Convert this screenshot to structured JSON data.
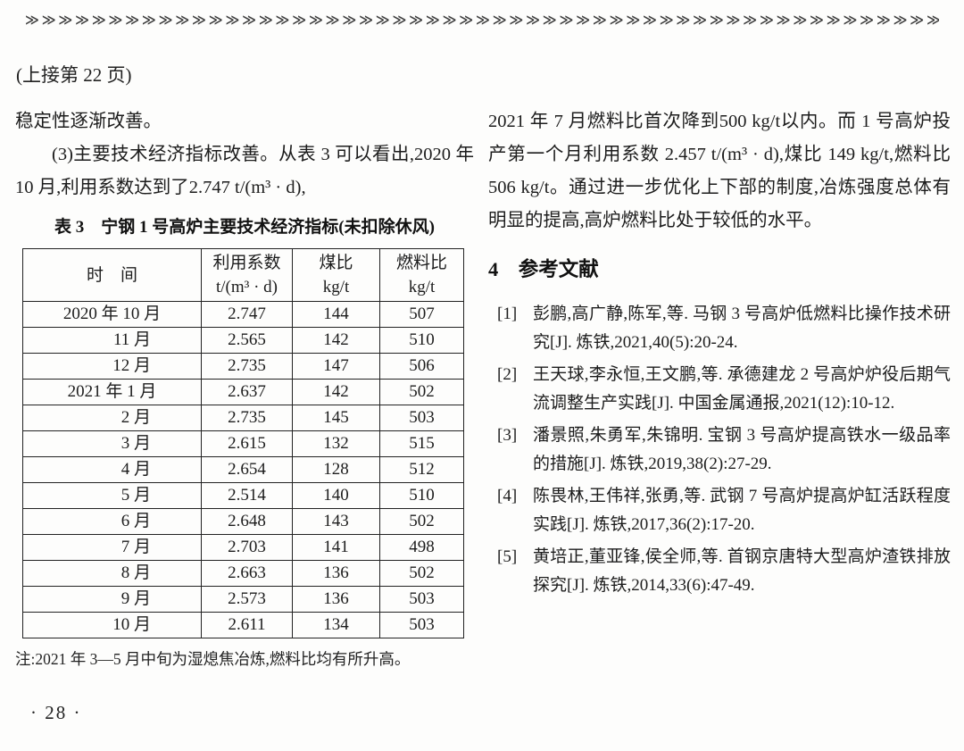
{
  "page": {
    "decorative_border": "≫≫≫≫≫≫≫≫≫≫≫≫≫≫≫≫≫≫≫≫≫≫≫≫≫≫≫≫≫≫≫≫≫≫≫≫≫≫≫≫≫≫≫≫≫≫≫≫≫≫≫≫≫≫≫≫≫≫≫≫≫≫≫≫≫≫≫≫",
    "continued_from": "(上接第 22 页)",
    "page_number": "· 28 ·"
  },
  "left_column": {
    "para1": "稳定性逐渐改善。",
    "para2": "(3)主要技术经济指标改善。从表 3 可以看出,2020 年 10 月,利用系数达到了2.747 t/(m³ · d),",
    "table": {
      "title": "表 3　宁钢 1 号高炉主要技术经济指标(未扣除休风)",
      "headers": {
        "time": "时　间",
        "col2_name": "利用系数",
        "col2_unit": "t/(m³ · d)",
        "col3_name": "煤比",
        "col3_unit": "kg/t",
        "col4_name": "燃料比",
        "col4_unit": "kg/t"
      },
      "rows": [
        [
          "2020 年 10 月",
          "2.747",
          "144",
          "507"
        ],
        [
          "11 月",
          "2.565",
          "142",
          "510"
        ],
        [
          "12 月",
          "2.735",
          "147",
          "506"
        ],
        [
          "2021 年 1 月",
          "2.637",
          "142",
          "502"
        ],
        [
          "2 月",
          "2.735",
          "145",
          "503"
        ],
        [
          "3 月",
          "2.615",
          "132",
          "515"
        ],
        [
          "4 月",
          "2.654",
          "128",
          "512"
        ],
        [
          "5 月",
          "2.514",
          "140",
          "510"
        ],
        [
          "6 月",
          "2.648",
          "143",
          "502"
        ],
        [
          "7 月",
          "2.703",
          "141",
          "498"
        ],
        [
          "8 月",
          "2.663",
          "136",
          "502"
        ],
        [
          "9 月",
          "2.573",
          "136",
          "503"
        ],
        [
          "10 月",
          "2.611",
          "134",
          "503"
        ]
      ],
      "note": "注:2021 年 3—5 月中旬为湿熄焦冶炼,燃料比均有所升高。"
    }
  },
  "right_column": {
    "paragraph": "2021 年 7 月燃料比首次降到500 kg/t以内。而 1 号高炉投产第一个月利用系数 2.457 t/(m³ · d),煤比 149 kg/t,燃料比 506 kg/t。通过进一步优化上下部的制度,冶炼强度总体有明显的提高,高炉燃料比处于较低的水平。",
    "section_heading": "4　参考文献",
    "references": [
      {
        "label": "[1]",
        "text": "彭鹏,高广静,陈军,等. 马钢 3 号高炉低燃料比操作技术研究[J]. 炼铁,2021,40(5):20-24."
      },
      {
        "label": "[2]",
        "text": "王天球,李永恒,王文鹏,等. 承德建龙 2 号高炉炉役后期气流调整生产实践[J]. 中国金属通报,2021(12):10-12."
      },
      {
        "label": "[3]",
        "text": "潘景照,朱勇军,朱锦明. 宝钢 3 号高炉提高铁水一级品率的措施[J]. 炼铁,2019,38(2):27-29."
      },
      {
        "label": "[4]",
        "text": "陈畏林,王伟祥,张勇,等. 武钢 7 号高炉提高炉缸活跃程度实践[J]. 炼铁,2017,36(2):17-20."
      },
      {
        "label": "[5]",
        "text": "黄培正,董亚锋,侯全师,等. 首钢京唐特大型高炉渣铁排放探究[J]. 炼铁,2014,33(6):47-49."
      }
    ]
  }
}
